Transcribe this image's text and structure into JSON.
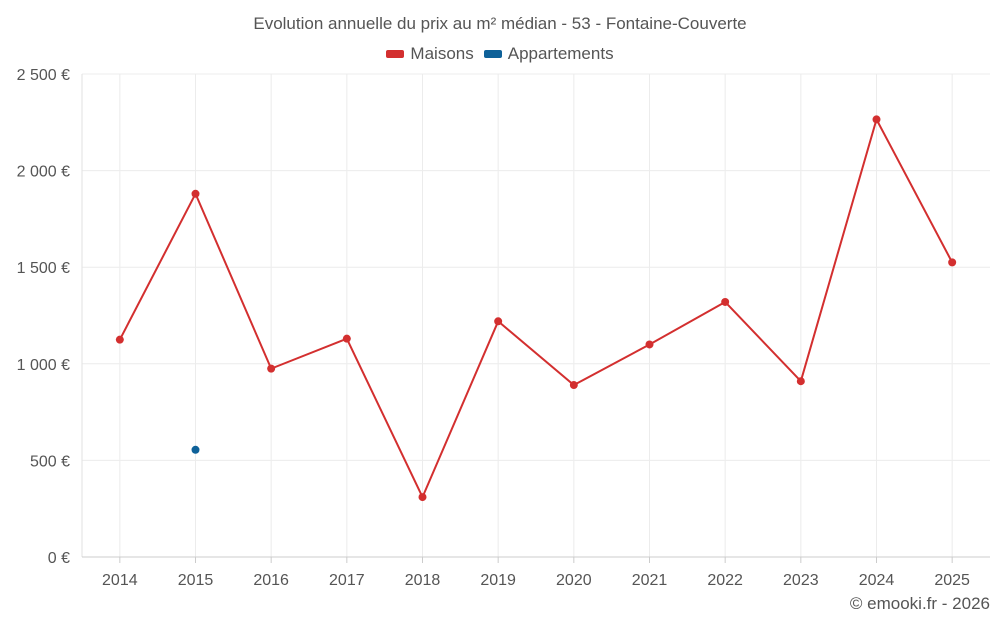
{
  "chart_data": {
    "type": "line",
    "title": "Evolution annuelle du prix au m² médian - 53 - Fontaine-Couverte",
    "categories": [
      "2014",
      "2015",
      "2016",
      "2017",
      "2018",
      "2019",
      "2020",
      "2021",
      "2022",
      "2023",
      "2024",
      "2025"
    ],
    "series": [
      {
        "name": "Maisons",
        "color": "#d32f2f",
        "values": [
          1125,
          1880,
          975,
          1130,
          310,
          1220,
          890,
          1100,
          1320,
          910,
          2265,
          1525
        ]
      },
      {
        "name": "Appartements",
        "color": "#0e6199",
        "values": [
          null,
          555,
          null,
          null,
          null,
          null,
          null,
          null,
          null,
          null,
          null,
          null
        ]
      }
    ],
    "y_ticks": [
      0,
      500,
      1000,
      1500,
      2000,
      2500
    ],
    "y_tick_labels": [
      "0 €",
      "500 €",
      "1 000 €",
      "1 500 €",
      "2 000 €",
      "2 500 €"
    ],
    "ylim": [
      0,
      2500
    ],
    "grid": true,
    "legend_position": "top-center"
  },
  "credit": "© emooki.fr - 2026"
}
